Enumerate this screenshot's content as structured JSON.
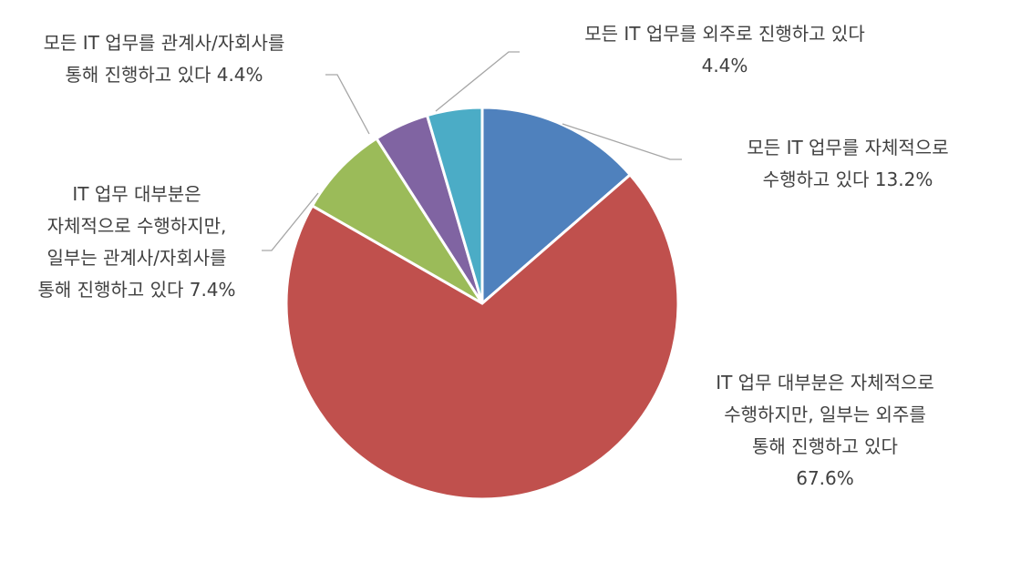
{
  "chart_data": {
    "type": "pie",
    "start_angle_deg": 0,
    "direction": "clockwise",
    "slices": [
      {
        "label_lines": [
          "모든 IT 업무를 자체적으로",
          "수행하고 있다 13.2%"
        ],
        "value": 13.2,
        "color": "#4F81BD"
      },
      {
        "label_lines": [
          "IT 업무 대부분은 자체적으로",
          "수행하지만, 일부는 외주를",
          "통해 진행하고 있다",
          "67.6%"
        ],
        "value": 67.6,
        "color": "#C0504D"
      },
      {
        "label_lines": [
          "IT 업무 대부분은",
          "자체적으로 수행하지만,",
          "일부는 관계사/자회사를",
          "통해 진행하고 있다 7.4%"
        ],
        "value": 7.4,
        "color": "#9BBB59"
      },
      {
        "label_lines": [
          "모든 IT 업무를 관계사/자회사를",
          "통해 진행하고 있다 4.4%"
        ],
        "value": 4.4,
        "color": "#8064A2"
      },
      {
        "label_lines": [
          "모든 IT 업무를 외주로 진행하고 있다",
          "4.4%"
        ],
        "value": 4.4,
        "color": "#4BACC6"
      }
    ]
  }
}
